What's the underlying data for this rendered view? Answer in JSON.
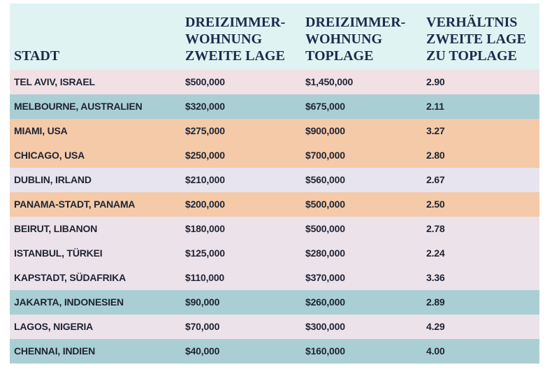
{
  "table": {
    "header": [
      [
        "STADT"
      ],
      [
        "DREIZIMMER-",
        "WOHNUNG",
        "ZWEITE LAGE"
      ],
      [
        "DREIZIMMER-",
        "WOHNUNG",
        "TOPLAGE"
      ],
      [
        "VERHÄLTNIS",
        "ZWEITE LAGE",
        "ZU TOPLAGE"
      ]
    ],
    "rows": [
      [
        "TEL AVIV, ISRAEL",
        "$500,000",
        "$1,450,000",
        "2.90"
      ],
      [
        "MELBOURNE, AUSTRALIEN",
        "$320,000",
        "$675,000",
        "2.11"
      ],
      [
        "MIAMI, USA",
        "$275,000",
        "$900,000",
        "3.27"
      ],
      [
        "CHICAGO, USA",
        "$250,000",
        "$700,000",
        "2.80"
      ],
      [
        "DUBLIN, IRLAND",
        "$210,000",
        "$560,000",
        "2.67"
      ],
      [
        "PANAMA-STADT, PANAMA",
        "$200,000",
        "$500,000",
        "2.50"
      ],
      [
        "BEIRUT, LIBANON",
        "$180,000",
        "$500,000",
        "2.78"
      ],
      [
        "ISTANBUL, TÜRKEI",
        "$125,000",
        "$280,000",
        "2.24"
      ],
      [
        "KAPSTADT, SÜDAFRIKA",
        "$110,000",
        "$370,000",
        "3.36"
      ],
      [
        "JAKARTA, INDONESIEN",
        "$90,000",
        "$260,000",
        "2.89"
      ],
      [
        "LAGOS, NIGERIA",
        "$70,000",
        "$300,000",
        "4.29"
      ],
      [
        "CHENNAI, INDIEN",
        "$40,000",
        "$160,000",
        "4.00"
      ]
    ]
  }
}
